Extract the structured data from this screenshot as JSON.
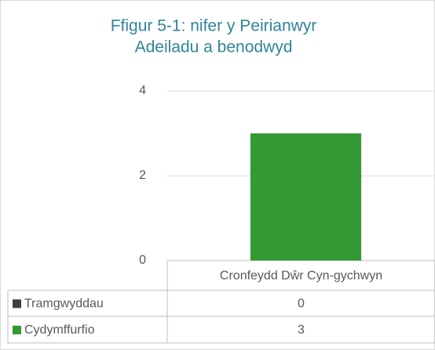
{
  "chart_data": {
    "type": "bar",
    "title": [
      "Ffigur 5-1: nifer y Peirianwyr",
      "Adeiladu a benodwyd"
    ],
    "categories": [
      "Cronfeydd Dŵr Cyn-gychwyn"
    ],
    "series": [
      {
        "name": "Tramgwyddau",
        "color": "#404040",
        "values": [
          0
        ]
      },
      {
        "name": "Cydymffurfio",
        "color": "#339933",
        "values": [
          3
        ]
      }
    ],
    "ylim": [
      0,
      4
    ],
    "yticks": [
      0,
      2,
      4
    ],
    "grid": true
  }
}
